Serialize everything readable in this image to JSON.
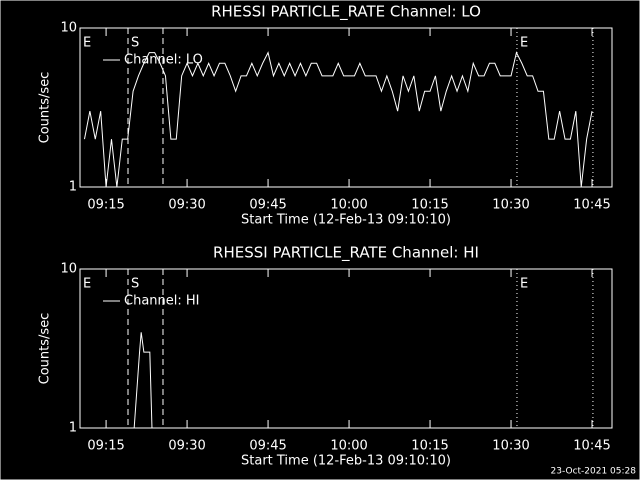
{
  "chart_data": [
    {
      "type": "line",
      "title": "RHESSI PARTICLE_RATE Channel: LO",
      "xlabel": "Start Time (12-Feb-13 09:10:10)",
      "ylabel": "Counts/sec",
      "x": [
        11,
        12,
        13,
        14,
        15,
        16,
        17,
        18,
        19,
        20,
        21,
        22,
        23,
        24,
        25,
        26,
        27,
        28,
        29,
        30,
        31,
        32,
        33,
        34,
        35,
        36,
        37,
        38,
        39,
        40,
        41,
        42,
        43,
        44,
        45,
        46,
        47,
        48,
        49,
        50,
        51,
        52,
        53,
        54,
        55,
        56,
        57,
        58,
        59,
        60,
        61,
        62,
        63,
        64,
        65,
        66,
        67,
        68,
        69,
        70,
        71,
        72,
        73,
        74,
        75,
        76,
        77,
        78,
        79,
        80,
        81,
        82,
        83,
        84,
        85,
        86,
        87,
        88,
        89,
        90,
        91,
        92,
        93,
        94,
        95,
        96,
        97,
        98,
        99,
        100,
        101,
        102,
        103,
        104,
        105
      ],
      "series": [
        {
          "name": "Channel: LO",
          "color": "#ffffff",
          "values": [
            2,
            3,
            2,
            3,
            1,
            2,
            1,
            2,
            2,
            4,
            5,
            6,
            7,
            7,
            6,
            5,
            2,
            2,
            5,
            6,
            5,
            6,
            5,
            6,
            5,
            6,
            6,
            5,
            4,
            5,
            5,
            6,
            5,
            6,
            7,
            5,
            6,
            5,
            6,
            5,
            6,
            5,
            6,
            6,
            5,
            5,
            5,
            6,
            5,
            5,
            5,
            6,
            5,
            5,
            5,
            4,
            5,
            4,
            3,
            5,
            4,
            5,
            3,
            4,
            4,
            5,
            3,
            4,
            5,
            4,
            5,
            4,
            6,
            5,
            5,
            6,
            6,
            5,
            5,
            5,
            7,
            6,
            5,
            5,
            4,
            4,
            2,
            2,
            3,
            2,
            2,
            3,
            1,
            2,
            3
          ]
        }
      ],
      "xlim": [
        10.17,
        108.7
      ],
      "ylim": [
        1,
        10
      ],
      "log_y": true,
      "xticks": [
        {
          "value": 15,
          "label": "09:15"
        },
        {
          "value": 30,
          "label": "09:30"
        },
        {
          "value": 45,
          "label": "09:45"
        },
        {
          "value": 60,
          "label": "10:00"
        },
        {
          "value": 75,
          "label": "10:15"
        },
        {
          "value": 90,
          "label": "10:30"
        },
        {
          "value": 105,
          "label": "10:45"
        }
      ],
      "yticks": [
        1,
        10
      ],
      "vlines": [
        {
          "x": 19.06,
          "style": "dashed"
        },
        {
          "x": 25.54,
          "style": "dashed"
        },
        {
          "x": 91.1,
          "style": "dotted"
        },
        {
          "x": 105.17,
          "style": "dotted"
        }
      ],
      "annotations": [
        {
          "text": "E",
          "x": 10.17
        },
        {
          "text": "S",
          "x": 19.06
        },
        {
          "text": "E",
          "x": 91.1
        }
      ],
      "legend": "upper left"
    },
    {
      "type": "line",
      "title": "RHESSI PARTICLE_RATE Channel: HI",
      "xlabel": "Start Time (12-Feb-13 09:10:10)",
      "ylabel": "Counts/sec",
      "x": [
        20.2,
        21.2,
        21.5,
        22,
        23.1,
        23.5
      ],
      "series": [
        {
          "name": "Channel: HI",
          "color": "#ffffff",
          "values": [
            1,
            3,
            4,
            3,
            3,
            1
          ]
        }
      ],
      "xlim": [
        10.17,
        108.7
      ],
      "ylim": [
        1,
        10
      ],
      "log_y": true,
      "xticks": [
        {
          "value": 15,
          "label": "09:15"
        },
        {
          "value": 30,
          "label": "09:30"
        },
        {
          "value": 45,
          "label": "09:45"
        },
        {
          "value": 60,
          "label": "10:00"
        },
        {
          "value": 75,
          "label": "10:15"
        },
        {
          "value": 90,
          "label": "10:30"
        },
        {
          "value": 105,
          "label": "10:45"
        }
      ],
      "yticks": [
        1,
        10
      ],
      "vlines": [
        {
          "x": 19.06,
          "style": "dashed"
        },
        {
          "x": 25.54,
          "style": "dashed"
        },
        {
          "x": 91.1,
          "style": "dotted"
        },
        {
          "x": 105.17,
          "style": "dotted"
        }
      ],
      "annotations": [
        {
          "text": "E",
          "x": 10.17
        },
        {
          "text": "S",
          "x": 19.06
        },
        {
          "text": "E",
          "x": 91.1
        }
      ],
      "legend": "upper left"
    }
  ],
  "footer": "23-Oct-2021 05:28"
}
